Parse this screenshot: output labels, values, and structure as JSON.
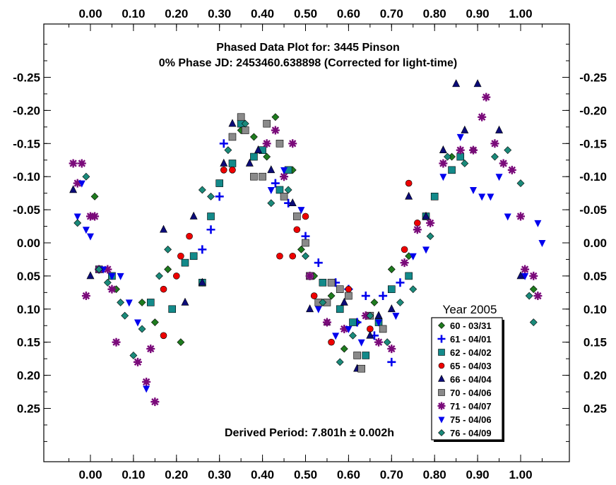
{
  "chart_data": {
    "type": "scatter",
    "title": "Phased Data Plot for: 3445 Pinson",
    "subtitle": "0% Phase JD:  2453460.638898   (Corrected for light-time)",
    "annotation": "Derived Period: 7.801h  ± 0.002h",
    "legend_title": "Year 2005",
    "legend_position": "bottom-right",
    "xlim": [
      -0.11,
      1.11
    ],
    "ylim": [
      0.35,
      -0.35
    ],
    "y_inverted": true,
    "grid": false,
    "xticks": [
      0.0,
      0.1,
      0.2,
      0.3,
      0.4,
      0.5,
      0.6,
      0.7,
      0.8,
      0.9,
      1.0
    ],
    "xtick_labels": [
      "0.00",
      "0.10",
      "0.20",
      "0.30",
      "0.40",
      "0.50",
      "0.60",
      "0.70",
      "0.80",
      "0.90",
      "1.00"
    ],
    "yticks": [
      -0.25,
      -0.2,
      -0.15,
      -0.1,
      -0.05,
      0.0,
      0.05,
      0.1,
      0.15,
      0.2,
      0.25
    ],
    "ytick_labels": [
      "-0.25",
      "-0.20",
      "-0.15",
      "-0.10",
      "-0.05",
      "0.00",
      "0.05",
      "0.10",
      "0.15",
      "0.20",
      "0.25"
    ],
    "series": [
      {
        "name": "60 - 03/31",
        "marker": "diamond",
        "color": "#1e7b1e",
        "points": [
          [
            0.01,
            -0.07
          ],
          [
            0.06,
            0.07
          ],
          [
            0.12,
            0.09
          ],
          [
            0.15,
            0.12
          ],
          [
            0.18,
            0.04
          ],
          [
            0.21,
            0.15
          ],
          [
            0.26,
            0.06
          ],
          [
            0.35,
            -0.17
          ],
          [
            0.38,
            -0.16
          ],
          [
            0.41,
            -0.13
          ],
          [
            0.43,
            -0.19
          ],
          [
            0.45,
            -0.07
          ],
          [
            0.47,
            -0.11
          ],
          [
            0.49,
            0.01
          ],
          [
            0.52,
            0.05
          ],
          [
            0.56,
            0.08
          ],
          [
            0.59,
            0.16
          ],
          [
            0.62,
            0.12
          ],
          [
            0.66,
            0.09
          ],
          [
            0.7,
            0.04
          ],
          [
            0.74,
            0.02
          ],
          [
            0.78,
            -0.04
          ],
          [
            0.84,
            -0.13
          ],
          [
            0.89,
            -0.14
          ],
          [
            1.03,
            0.07
          ]
        ]
      },
      {
        "name": "61 - 04/01",
        "marker": "plus",
        "color": "#0000ee",
        "points": [
          [
            0.26,
            0.01
          ],
          [
            0.28,
            -0.02
          ],
          [
            0.3,
            -0.07
          ],
          [
            0.31,
            -0.15
          ],
          [
            0.43,
            -0.09
          ],
          [
            0.46,
            -0.06
          ],
          [
            0.5,
            -0.01
          ],
          [
            0.53,
            0.03
          ],
          [
            0.57,
            0.06
          ],
          [
            0.6,
            0.07
          ],
          [
            0.62,
            0.12
          ],
          [
            0.64,
            0.08
          ],
          [
            0.66,
            0.14
          ],
          [
            0.68,
            0.08
          ],
          [
            0.7,
            0.18
          ],
          [
            0.72,
            0.06
          ]
        ]
      },
      {
        "name": "62 - 04/02",
        "marker": "square",
        "color": "#138a8a",
        "points": [
          [
            0.02,
            0.04
          ],
          [
            0.05,
            0.05
          ],
          [
            0.14,
            0.09
          ],
          [
            0.19,
            0.1
          ],
          [
            0.22,
            0.03
          ],
          [
            0.24,
            0.02
          ],
          [
            0.26,
            0.06
          ],
          [
            0.28,
            -0.04
          ],
          [
            0.3,
            -0.09
          ],
          [
            0.33,
            -0.12
          ],
          [
            0.35,
            -0.18
          ],
          [
            0.38,
            -0.13
          ],
          [
            0.4,
            -0.14
          ],
          [
            0.44,
            -0.08
          ],
          [
            0.46,
            -0.11
          ],
          [
            0.51,
            0.05
          ],
          [
            0.54,
            0.06
          ],
          [
            0.58,
            0.1
          ],
          [
            0.61,
            0.12
          ],
          [
            0.64,
            0.17
          ],
          [
            0.67,
            0.12
          ],
          [
            0.7,
            0.07
          ],
          [
            0.74,
            0.05
          ],
          [
            0.78,
            -0.04
          ],
          [
            0.8,
            -0.07
          ],
          [
            0.84,
            -0.11
          ],
          [
            0.86,
            -0.13
          ]
        ]
      },
      {
        "name": "65 - 04/03",
        "marker": "circle",
        "color": "#ee0000",
        "points": [
          [
            0.17,
            0.07
          ],
          [
            0.17,
            0.14
          ],
          [
            0.2,
            0.05
          ],
          [
            0.21,
            0.02
          ],
          [
            0.23,
            -0.01
          ],
          [
            0.31,
            -0.11
          ],
          [
            0.33,
            -0.11
          ],
          [
            0.44,
            0.02
          ],
          [
            0.47,
            0.02
          ],
          [
            0.48,
            -0.02
          ],
          [
            0.5,
            -0.04
          ],
          [
            0.52,
            0.08
          ],
          [
            0.56,
            0.15
          ],
          [
            0.6,
            0.07
          ],
          [
            0.65,
            0.13
          ],
          [
            0.73,
            0.01
          ],
          [
            0.74,
            -0.09
          ],
          [
            0.76,
            -0.03
          ]
        ]
      },
      {
        "name": "66 - 04/04",
        "marker": "triangle",
        "color": "#0b0b78",
        "points": [
          [
            -0.04,
            -0.08
          ],
          [
            0.0,
            0.05
          ],
          [
            0.17,
            -0.02
          ],
          [
            0.22,
            0.09
          ],
          [
            0.24,
            -0.04
          ],
          [
            0.26,
            0.06
          ],
          [
            0.31,
            -0.12
          ],
          [
            0.33,
            -0.18
          ],
          [
            0.37,
            -0.12
          ],
          [
            0.39,
            -0.14
          ],
          [
            0.42,
            -0.11
          ],
          [
            0.47,
            -0.06
          ],
          [
            0.51,
            0.1
          ],
          [
            0.55,
            0.12
          ],
          [
            0.59,
            0.09
          ],
          [
            0.62,
            0.19
          ],
          [
            0.65,
            0.14
          ],
          [
            0.67,
            0.11
          ],
          [
            0.7,
            0.1
          ],
          [
            0.74,
            -0.07
          ],
          [
            0.78,
            -0.04
          ],
          [
            0.82,
            -0.14
          ],
          [
            0.85,
            -0.24
          ],
          [
            0.87,
            -0.17
          ],
          [
            0.9,
            -0.24
          ],
          [
            0.95,
            -0.17
          ],
          [
            1.0,
            0.05
          ]
        ]
      },
      {
        "name": "70 - 04/06",
        "marker": "square",
        "color": "#8a8a8a",
        "points": [
          [
            0.33,
            -0.16
          ],
          [
            0.35,
            -0.19
          ],
          [
            0.36,
            -0.17
          ],
          [
            0.38,
            -0.1
          ],
          [
            0.4,
            -0.1
          ],
          [
            0.41,
            -0.18
          ],
          [
            0.44,
            -0.15
          ],
          [
            0.45,
            -0.07
          ],
          [
            0.48,
            -0.04
          ],
          [
            0.5,
            0.0
          ],
          [
            0.51,
            0.05
          ],
          [
            0.53,
            0.09
          ],
          [
            0.55,
            0.09
          ],
          [
            0.56,
            0.06
          ],
          [
            0.58,
            0.07
          ],
          [
            0.6,
            0.08
          ],
          [
            0.62,
            0.17
          ],
          [
            0.63,
            0.19
          ],
          [
            0.65,
            0.11
          ],
          [
            0.68,
            0.13
          ]
        ]
      },
      {
        "name": "71 - 04/07",
        "marker": "star",
        "color": "#7a0a7a",
        "points": [
          [
            -0.04,
            -0.12
          ],
          [
            -0.03,
            -0.09
          ],
          [
            -0.02,
            -0.12
          ],
          [
            -0.01,
            0.08
          ],
          [
            0.0,
            -0.04
          ],
          [
            0.01,
            -0.04
          ],
          [
            0.02,
            0.04
          ],
          [
            0.04,
            0.04
          ],
          [
            0.05,
            0.07
          ],
          [
            0.06,
            0.15
          ],
          [
            0.11,
            0.18
          ],
          [
            0.13,
            0.21
          ],
          [
            0.14,
            0.16
          ],
          [
            0.15,
            0.24
          ],
          [
            0.41,
            -0.15
          ],
          [
            0.43,
            -0.17
          ],
          [
            0.45,
            -0.1
          ],
          [
            0.47,
            -0.15
          ],
          [
            0.51,
            0.05
          ],
          [
            0.55,
            0.12
          ],
          [
            0.59,
            0.13
          ],
          [
            0.64,
            0.11
          ],
          [
            0.67,
            0.15
          ],
          [
            0.7,
            0.16
          ],
          [
            0.73,
            0.03
          ],
          [
            0.76,
            -0.02
          ],
          [
            0.79,
            -0.03
          ],
          [
            0.82,
            -0.12
          ],
          [
            0.86,
            -0.14
          ],
          [
            0.89,
            -0.14
          ],
          [
            0.91,
            -0.19
          ],
          [
            0.92,
            -0.22
          ],
          [
            0.94,
            -0.15
          ],
          [
            0.96,
            -0.12
          ],
          [
            0.98,
            -0.11
          ],
          [
            1.0,
            -0.04
          ],
          [
            1.01,
            0.04
          ],
          [
            1.03,
            0.05
          ],
          [
            1.04,
            0.08
          ]
        ]
      },
      {
        "name": "75 - 04/06",
        "marker": "triangle-down",
        "color": "#0000ee",
        "points": [
          [
            -0.03,
            -0.04
          ],
          [
            -0.02,
            -0.09
          ],
          [
            -0.01,
            -0.02
          ],
          [
            0.0,
            -0.01
          ],
          [
            0.03,
            0.04
          ],
          [
            0.05,
            0.05
          ],
          [
            0.07,
            0.05
          ],
          [
            0.09,
            0.09
          ],
          [
            0.11,
            0.12
          ],
          [
            0.13,
            0.22
          ],
          [
            0.42,
            -0.08
          ],
          [
            0.45,
            -0.11
          ],
          [
            0.49,
            -0.05
          ],
          [
            0.53,
            0.1
          ],
          [
            0.57,
            0.14
          ],
          [
            0.6,
            0.13
          ],
          [
            0.63,
            0.15
          ],
          [
            0.67,
            0.12
          ],
          [
            0.71,
            0.11
          ],
          [
            0.75,
            0.02
          ],
          [
            0.78,
            0.01
          ],
          [
            0.82,
            -0.1
          ],
          [
            0.86,
            -0.16
          ],
          [
            0.89,
            -0.08
          ],
          [
            0.91,
            -0.07
          ],
          [
            0.93,
            -0.07
          ],
          [
            0.95,
            -0.1
          ],
          [
            0.97,
            -0.04
          ],
          [
            1.01,
            0.05
          ],
          [
            1.04,
            -0.03
          ],
          [
            1.05,
            0.0
          ]
        ]
      },
      {
        "name": "76 - 04/09",
        "marker": "diamond",
        "color": "#1a8a7a",
        "points": [
          [
            -0.03,
            -0.03
          ],
          [
            -0.01,
            -0.1
          ],
          [
            0.02,
            0.04
          ],
          [
            0.04,
            0.06
          ],
          [
            0.07,
            0.09
          ],
          [
            0.08,
            0.11
          ],
          [
            0.1,
            0.17
          ],
          [
            0.12,
            0.13
          ],
          [
            0.16,
            0.05
          ],
          [
            0.18,
            0.01
          ],
          [
            0.26,
            -0.08
          ],
          [
            0.28,
            -0.07
          ],
          [
            0.32,
            -0.14
          ],
          [
            0.36,
            -0.18
          ],
          [
            0.42,
            -0.06
          ],
          [
            0.46,
            -0.08
          ],
          [
            0.5,
            0.02
          ],
          [
            0.54,
            0.09
          ],
          [
            0.58,
            0.18
          ],
          [
            0.61,
            0.14
          ],
          [
            0.65,
            0.11
          ],
          [
            0.69,
            0.15
          ],
          [
            0.72,
            0.09
          ],
          [
            0.75,
            0.07
          ],
          [
            0.79,
            -0.01
          ],
          [
            0.83,
            -0.13
          ],
          [
            0.87,
            -0.12
          ],
          [
            0.94,
            -0.13
          ],
          [
            0.97,
            -0.14
          ],
          [
            1.0,
            -0.09
          ],
          [
            1.02,
            0.08
          ],
          [
            1.03,
            0.12
          ]
        ]
      }
    ]
  }
}
